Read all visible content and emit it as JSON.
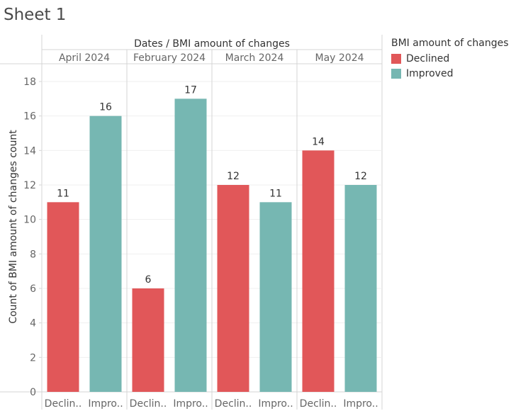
{
  "sheet": {
    "title": "Sheet 1"
  },
  "colors": {
    "Declined": "#e15759",
    "Improved": "#76b7b2"
  },
  "legend": {
    "title": "BMI amount of changes",
    "items": [
      {
        "label": "Declined",
        "color": "#e15759"
      },
      {
        "label": "Improved",
        "color": "#76b7b2"
      }
    ]
  },
  "chart_data": {
    "type": "bar",
    "title": "",
    "header": "Dates  /  BMI amount of changes",
    "xlabel": "",
    "ylabel": "Count of BMI amount of changes count",
    "ylim": [
      0,
      19
    ],
    "yticks": [
      0,
      2,
      4,
      6,
      8,
      10,
      12,
      14,
      16,
      18
    ],
    "grid": true,
    "legend_position": "right",
    "panes": [
      {
        "name": "April 2024",
        "bars": [
          {
            "category": "Declined",
            "tick": "Declin..",
            "value": 11
          },
          {
            "category": "Improved",
            "tick": "Impro..",
            "value": 16
          }
        ]
      },
      {
        "name": "February 2024",
        "bars": [
          {
            "category": "Declined",
            "tick": "Declin..",
            "value": 6
          },
          {
            "category": "Improved",
            "tick": "Impro..",
            "value": 17
          }
        ]
      },
      {
        "name": "March 2024",
        "bars": [
          {
            "category": "Declined",
            "tick": "Declin..",
            "value": 12
          },
          {
            "category": "Improved",
            "tick": "Impro..",
            "value": 11
          }
        ]
      },
      {
        "name": "May 2024",
        "bars": [
          {
            "category": "Declined",
            "tick": "Declin..",
            "value": 14
          },
          {
            "category": "Improved",
            "tick": "Impro..",
            "value": 12
          }
        ]
      }
    ]
  }
}
